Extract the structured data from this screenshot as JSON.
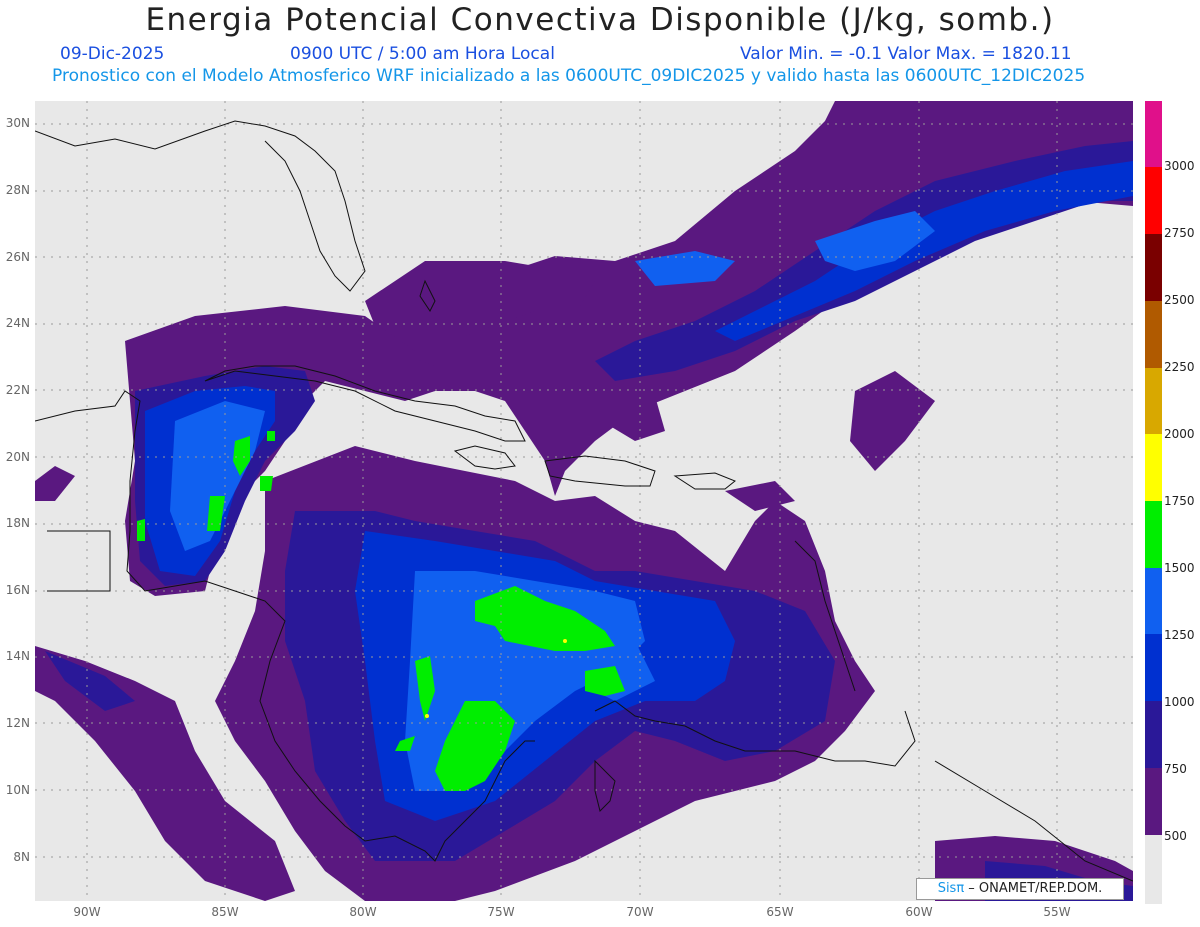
{
  "header": {
    "title": "Energia Potencial Convectiva Disponible (J/kg, somb.)",
    "date": "09-Dic-2025",
    "time": "0900 UTC / 5:00 am Hora Local",
    "min_max": "Valor Min. = -0.1  Valor Max. = 1820.11",
    "subtitle": "Pronostico con el Modelo Atmosferico WRF inicializado a las 0600UTC_09DIC2025 y valido hasta las  0600UTC_12DIC2025"
  },
  "map": {
    "lat_labels": [
      "30N",
      "28N",
      "26N",
      "24N",
      "22N",
      "20N",
      "18N",
      "16N",
      "14N",
      "12N",
      "10N",
      "8N"
    ],
    "lon_labels": [
      "90W",
      "85W",
      "80W",
      "75W",
      "70W",
      "65W",
      "60W",
      "55W"
    ],
    "background_color": "#e8e8e8",
    "coast_color": "#111111"
  },
  "colorbar": {
    "levels": [
      {
        "label": "3000",
        "color": "#e0108a"
      },
      {
        "label": "2750",
        "color": "#ff0000"
      },
      {
        "label": "2500",
        "color": "#7a0000"
      },
      {
        "label": "2250",
        "color": "#b05a00"
      },
      {
        "label": "2000",
        "color": "#d8a800"
      },
      {
        "label": "1750",
        "color": "#ffff00"
      },
      {
        "label": "1500",
        "color": "#00ee00"
      },
      {
        "label": "1250",
        "color": "#1060f0"
      },
      {
        "label": "1000",
        "color": "#0030d0"
      },
      {
        "label": "750",
        "color": "#2a1898"
      },
      {
        "label": "500",
        "color": "#5a1880"
      },
      {
        "label": "",
        "color": "#e8e8e8"
      }
    ]
  },
  "credit": {
    "brand": "Sisπ",
    "text": " – ONAMET/REP.DOM."
  }
}
